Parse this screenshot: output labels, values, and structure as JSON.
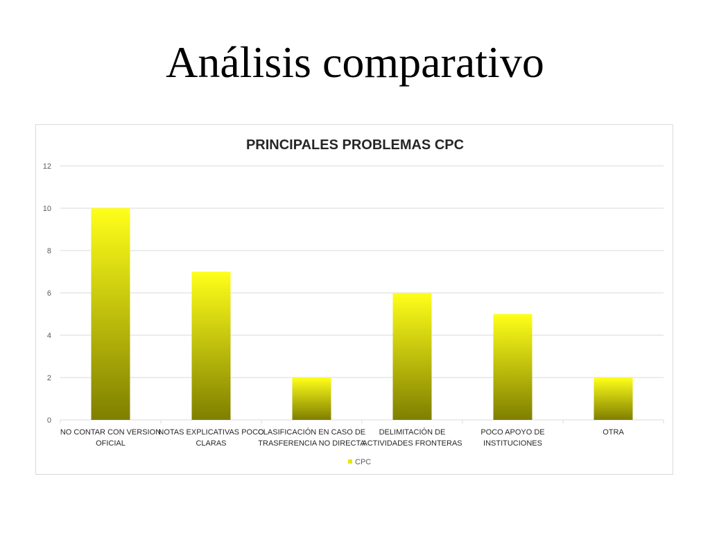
{
  "slide": {
    "title": "Análisis comparativo"
  },
  "chart_data": {
    "type": "bar",
    "title": "PRINCIPALES PROBLEMAS CPC",
    "categories": [
      [
        "NO CONTAR CON VERSION",
        "OFICIAL"
      ],
      [
        "NOTAS EXPLICATIVAS POCO",
        "CLARAS"
      ],
      [
        "CLASIFICACIÓN EN CASO DE",
        "TRASFERENCIA NO DIRECTA"
      ],
      [
        "DELIMITACIÓN DE",
        "ACTIVIDADES FRONTERAS"
      ],
      [
        "POCO APOYO DE",
        "INSTITUCIONES"
      ],
      [
        "OTRA"
      ]
    ],
    "series": [
      {
        "name": "CPC",
        "values": [
          10,
          7,
          2,
          6,
          5,
          2
        ]
      }
    ],
    "ylim": [
      0,
      12
    ],
    "yticks": [
      0,
      2,
      4,
      6,
      8,
      10,
      12
    ],
    "grid": true,
    "legend": "bottom",
    "colors": {
      "bar_top": "#ffff1a",
      "bar_bottom": "#7f7f00",
      "legend_swatch": "#e6e600",
      "grid": "#d9d9d9"
    }
  }
}
